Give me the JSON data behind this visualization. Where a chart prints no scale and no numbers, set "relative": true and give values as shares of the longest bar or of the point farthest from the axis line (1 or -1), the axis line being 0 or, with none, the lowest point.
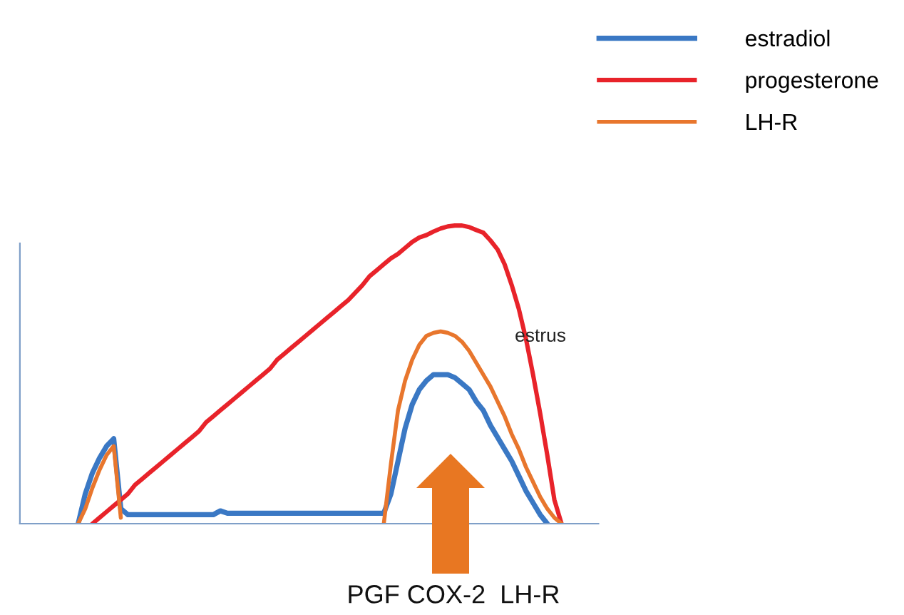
{
  "chart_data": {
    "type": "line",
    "relative": true,
    "legend": "top right",
    "marker": "none",
    "line_style": "solid",
    "categories": [
      null,
      null,
      null,
      null,
      null,
      null,
      null,
      null,
      null,
      null,
      null,
      null,
      null,
      null,
      null,
      null,
      null,
      null,
      null,
      null,
      null,
      null,
      null,
      null,
      null,
      null,
      null,
      null,
      null,
      null,
      null,
      null,
      null,
      null,
      null,
      null,
      null,
      null,
      null,
      null,
      null,
      null,
      null,
      null,
      null,
      null,
      null,
      null,
      null,
      null,
      null,
      null,
      null,
      null,
      null,
      null,
      null,
      null,
      null,
      null,
      null,
      null,
      null,
      null,
      null,
      null,
      null,
      null,
      null,
      null,
      null
    ],
    "series": [
      {
        "name": "estradiol",
        "color": "#3a78c4",
        "values": [
          null,
          0,
          0.1,
          0.17,
          0.22,
          0.26,
          0.285,
          0.05,
          0.03,
          0.03,
          0.03,
          0.03,
          0.03,
          0.03,
          0.03,
          0.03,
          0.03,
          0.03,
          0.03,
          0.03,
          0.03,
          0.043,
          0.035,
          0.035,
          0.035,
          0.035,
          0.035,
          0.035,
          0.035,
          0.035,
          0.035,
          0.035,
          0.035,
          0.035,
          0.035,
          0.035,
          0.035,
          0.035,
          0.035,
          0.035,
          0.035,
          0.035,
          0.035,
          0.035,
          0.035,
          0.1,
          0.21,
          0.32,
          0.4,
          0.45,
          0.48,
          0.5,
          0.5,
          0.5,
          0.49,
          0.47,
          0.45,
          0.41,
          0.38,
          0.33,
          0.29,
          0.25,
          0.21,
          0.16,
          0.11,
          0.07,
          0.03,
          0,
          null,
          null,
          null
        ]
      },
      {
        "name": "progesterone",
        "color": "#e8232a",
        "values": [
          null,
          null,
          null,
          0,
          0.02,
          0.04,
          0.06,
          0.08,
          0.1,
          0.13,
          0.15,
          0.17,
          0.19,
          0.21,
          0.23,
          0.25,
          0.27,
          0.29,
          0.31,
          0.34,
          0.36,
          0.38,
          0.4,
          0.42,
          0.44,
          0.46,
          0.48,
          0.5,
          0.52,
          0.55,
          0.57,
          0.59,
          0.61,
          0.63,
          0.65,
          0.67,
          0.69,
          0.71,
          0.73,
          0.75,
          0.775,
          0.8,
          0.83,
          0.85,
          0.87,
          0.89,
          0.905,
          0.925,
          0.945,
          0.96,
          0.968,
          0.98,
          0.99,
          0.997,
          1.0,
          1.0,
          0.995,
          0.985,
          0.976,
          0.95,
          0.92,
          0.87,
          0.8,
          0.72,
          0.62,
          0.5,
          0.37,
          0.23,
          0.08,
          0,
          null
        ]
      },
      {
        "name": "LH-R",
        "color": "#e8762d",
        "values": [
          null,
          0,
          0.05,
          0.12,
          0.18,
          0.23,
          0.26,
          0.02,
          null,
          null,
          null,
          null,
          null,
          null,
          null,
          null,
          null,
          null,
          null,
          null,
          null,
          null,
          null,
          null,
          null,
          null,
          null,
          null,
          null,
          null,
          null,
          null,
          null,
          null,
          null,
          null,
          null,
          null,
          null,
          null,
          null,
          null,
          null,
          null,
          0,
          0.2,
          0.38,
          0.48,
          0.55,
          0.6,
          0.63,
          0.64,
          0.645,
          0.64,
          0.63,
          0.61,
          0.58,
          0.54,
          0.5,
          0.46,
          0.41,
          0.36,
          0.3,
          0.25,
          0.19,
          0.14,
          0.09,
          0.05,
          0.02,
          0,
          null
        ]
      }
    ],
    "annotations": [
      "estrus",
      "PGF COX-2  LH-R"
    ]
  }
}
